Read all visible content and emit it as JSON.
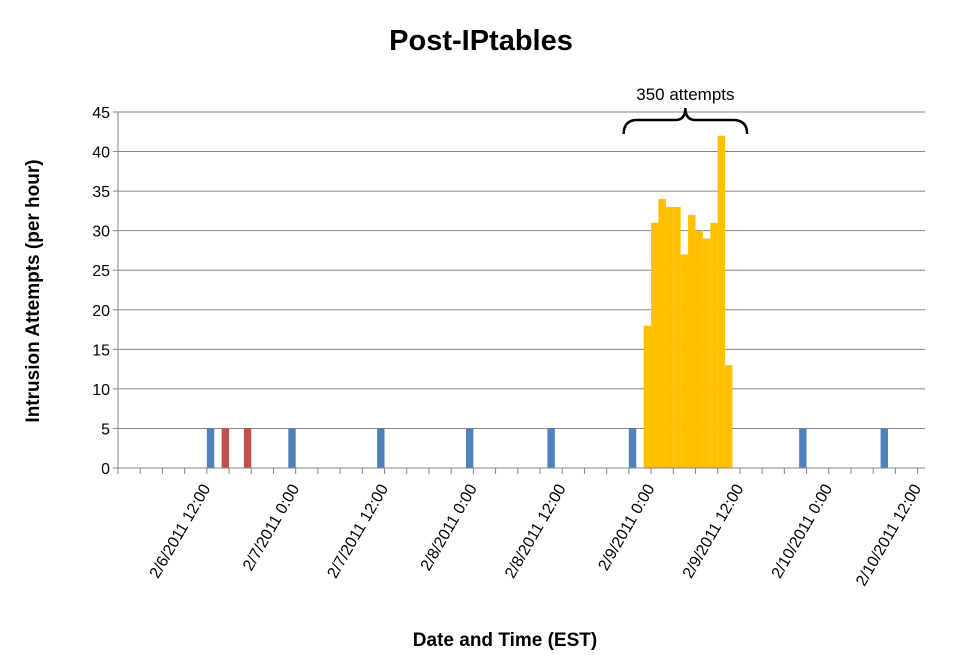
{
  "chart_data": {
    "type": "bar",
    "title": "Post-IPtables",
    "xlabel": "Date and Time (EST)",
    "ylabel": "Intrusion Attempts (per hour)",
    "ylim": [
      0,
      45
    ],
    "yticks": [
      0,
      5,
      10,
      15,
      20,
      25,
      30,
      35,
      40,
      45
    ],
    "xlim": [
      "2/6/2011 0:00",
      "2/10/2011 13:00"
    ],
    "xtick_labels": [
      "2/6/2011 12:00",
      "2/7/2011 0:00",
      "2/7/2011 12:00",
      "2/8/2011 0:00",
      "2/8/2011 12:00",
      "2/9/2011 0:00",
      "2/9/2011 12:00",
      "2/10/2011 0:00",
      "2/10/2011 12:00"
    ],
    "grid": "horizontal",
    "legend": "none",
    "colors": {
      "blue": "#4f81bd",
      "red": "#c0504d",
      "orange": "#ffc000"
    },
    "series": [
      {
        "color": "#4f81bd",
        "points": [
          {
            "x": "2/6/2011 12:00",
            "y": 5
          },
          {
            "x": "2/6/2011 23:00",
            "y": 5
          },
          {
            "x": "2/7/2011 11:00",
            "y": 5
          },
          {
            "x": "2/7/2011 23:00",
            "y": 5
          },
          {
            "x": "2/8/2011 10:00",
            "y": 5
          },
          {
            "x": "2/8/2011 21:00",
            "y": 5
          },
          {
            "x": "2/9/2011 20:00",
            "y": 5
          },
          {
            "x": "2/10/2011 7:00",
            "y": 5
          }
        ]
      },
      {
        "color": "#c0504d",
        "points": [
          {
            "x": "2/6/2011 14:00",
            "y": 5
          },
          {
            "x": "2/6/2011 17:00",
            "y": 5
          }
        ]
      },
      {
        "color": "#ffc000",
        "points": [
          {
            "x": "2/8/2011 23:00",
            "y": 18
          },
          {
            "x": "2/9/2011 0:00",
            "y": 31
          },
          {
            "x": "2/9/2011 1:00",
            "y": 34
          },
          {
            "x": "2/9/2011 2:00",
            "y": 33
          },
          {
            "x": "2/9/2011 3:00",
            "y": 33
          },
          {
            "x": "2/9/2011 4:00",
            "y": 27
          },
          {
            "x": "2/9/2011 5:00",
            "y": 32
          },
          {
            "x": "2/9/2011 6:00",
            "y": 30
          },
          {
            "x": "2/9/2011 7:00",
            "y": 29
          },
          {
            "x": "2/9/2011 8:00",
            "y": 31
          },
          {
            "x": "2/9/2011 9:00",
            "y": 42
          },
          {
            "x": "2/9/2011 10:00",
            "y": 13
          }
        ]
      }
    ],
    "annotations": [
      {
        "text": "350 attempts",
        "type": "brace",
        "from": "2/8/2011 23:00",
        "to": "2/9/2011 10:00"
      }
    ]
  }
}
